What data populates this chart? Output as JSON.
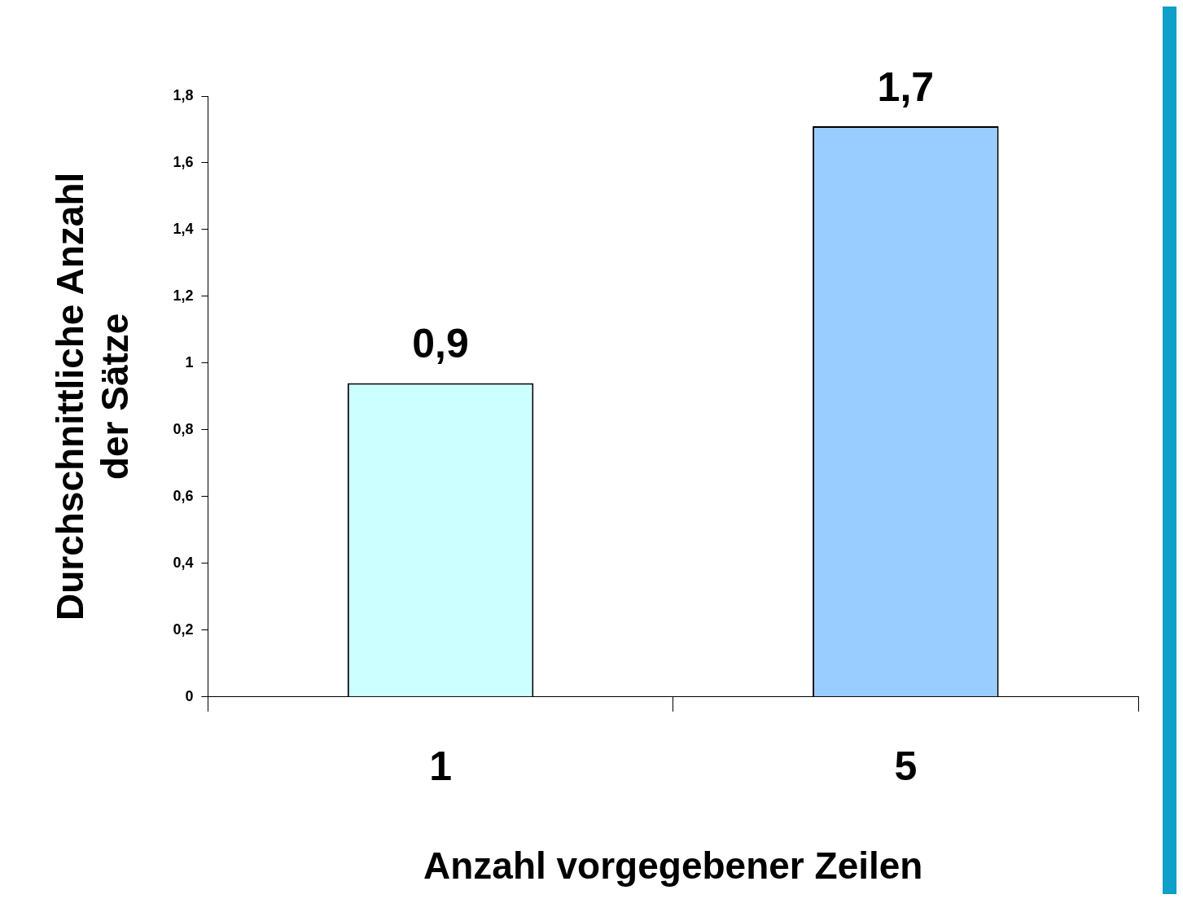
{
  "chart_data": {
    "type": "bar",
    "xlabel": "Anzahl vorgegebener Zeilen",
    "ylabel": "Durchschnittliche Anzahl der Sätze",
    "categories": [
      "1",
      "5"
    ],
    "values": [
      0.94,
      1.71
    ],
    "colors": [
      "#ccffff",
      "#99ccff"
    ],
    "value_labels": [
      "0,9",
      "1,7"
    ],
    "ylim": [
      0,
      1.8
    ],
    "yticks": [
      0,
      {
        "value": 0.2,
        "label": "0,2"
      },
      {
        "value": 0.4,
        "label": "0,4"
      },
      {
        "value": 0.6,
        "label": "0,6"
      },
      {
        "value": 0.8,
        "label": "0,8"
      },
      1,
      {
        "value": 1.2,
        "label": "1,2"
      },
      {
        "value": 1.4,
        "label": "1,4"
      },
      {
        "value": 1.6,
        "label": "1,6"
      },
      {
        "value": 1.8,
        "label": "1,8"
      }
    ],
    "grid": false,
    "legend": false
  }
}
